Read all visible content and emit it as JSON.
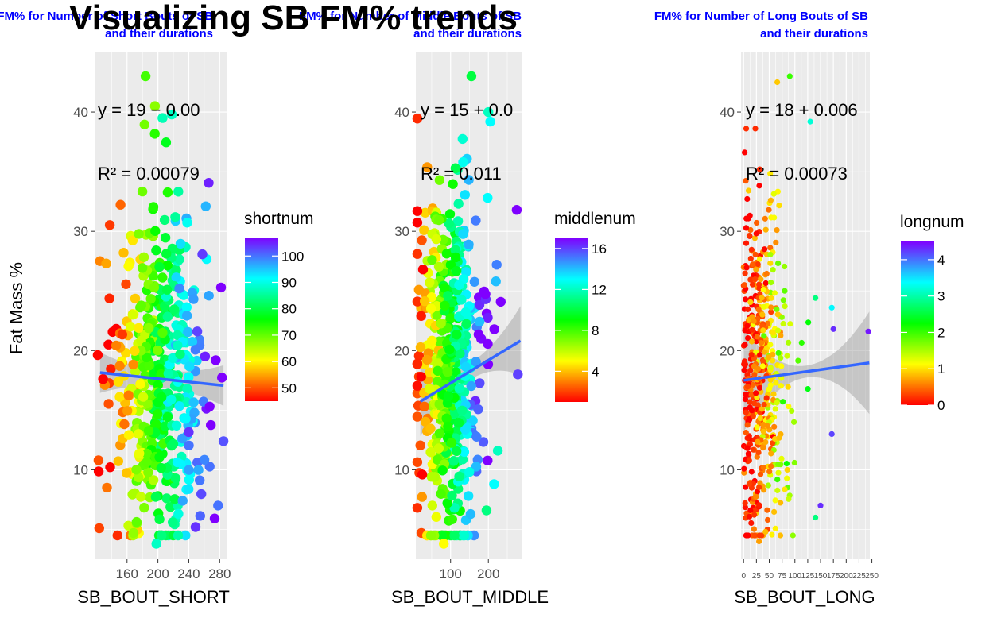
{
  "main_title": "Visualizing SB FM% trends",
  "y_axis_label": "Fat Mass %",
  "colors": {
    "panel_bg": "#ebebeb",
    "grid": "#ffffff",
    "trend_line": "#3366ff",
    "ribbon": "#999999",
    "title_blue": "#0000ff",
    "gradient": [
      "#ff0000",
      "#ffff00",
      "#00ff00",
      "#00ffff",
      "#7f00ff"
    ]
  },
  "chart_data": [
    {
      "type": "scatter",
      "title_lines": [
        "FM% for Number of Short Bouts of SB",
        "and their durations"
      ],
      "xlabel": "SB_BOUT_SHORT",
      "ylabel": "Fat Mass %",
      "xlim": [
        118,
        290
      ],
      "ylim": [
        2.5,
        45
      ],
      "xticks": [
        160,
        200,
        240,
        280
      ],
      "yticks": [
        10,
        20,
        30,
        40
      ],
      "xtick_labels": [
        "160",
        "200",
        "240",
        "280"
      ],
      "ytick_labels": [
        "10",
        "20",
        "30",
        "40"
      ],
      "equation": "y = 19 − 0.00",
      "r2_label": "R² = 0.00079",
      "regression": {
        "intercept": 19.0,
        "slope": -0.0068,
        "ribbon_half_width_center": 0.7,
        "ribbon_half_width_edge": 1.7,
        "x_range": [
          125,
          285
        ]
      },
      "legend": {
        "title": "shortnum",
        "min": 45,
        "max": 107,
        "ticks": [
          50,
          60,
          70,
          80,
          90,
          100
        ]
      },
      "point_summary": {
        "n": 480,
        "x_mean": 200,
        "x_sd": 30,
        "y_mean": 18,
        "y_sd": 7.5,
        "color_min": 45,
        "color_max": 107
      },
      "highlighted_points": [
        {
          "x": 184,
          "y": 43,
          "c": 72
        },
        {
          "x": 218,
          "y": 39.8,
          "c": 88
        },
        {
          "x": 206,
          "y": 39.5,
          "c": 87
        },
        {
          "x": 125,
          "y": 27.5,
          "c": 53
        },
        {
          "x": 133,
          "y": 27.3,
          "c": 55
        },
        {
          "x": 123,
          "y": 10.8,
          "c": 50
        },
        {
          "x": 124,
          "y": 5.1,
          "c": 49
        },
        {
          "x": 134,
          "y": 8.5,
          "c": 52
        },
        {
          "x": 262,
          "y": 32.1,
          "c": 96
        },
        {
          "x": 266,
          "y": 24.6,
          "c": 97
        },
        {
          "x": 251,
          "y": 21.6,
          "c": 103
        },
        {
          "x": 267,
          "y": 15.3,
          "c": 107
        },
        {
          "x": 285,
          "y": 12.4,
          "c": 102
        },
        {
          "x": 278,
          "y": 7.0,
          "c": 100
        },
        {
          "x": 232,
          "y": 7.4,
          "c": 97
        },
        {
          "x": 198,
          "y": 3.8,
          "c": 88
        }
      ]
    },
    {
      "type": "scatter",
      "title_lines": [
        "FM% for Number of Middle Bouts of SB",
        "and their durations"
      ],
      "xlabel": "SB_BOUT_MIDDLE",
      "ylabel": "Fat Mass %",
      "xlim": [
        8,
        290
      ],
      "ylim": [
        2.5,
        45
      ],
      "xticks": [
        100,
        200
      ],
      "yticks": [
        10,
        20,
        30,
        40
      ],
      "xtick_labels": [
        "100",
        "200"
      ],
      "ytick_labels": [
        "10",
        "20",
        "30",
        "40"
      ],
      "equation": "y = 15 + 0.0",
      "r2_label": "R² = 0.011",
      "regression": {
        "intercept": 15.35,
        "slope": 0.0192,
        "ribbon_half_width_center": 0.7,
        "ribbon_half_width_edge": 2.9,
        "x_range": [
          20,
          285
        ]
      },
      "legend": {
        "title": "middlenum",
        "min": 1,
        "max": 17,
        "ticks": [
          4,
          8,
          12,
          16
        ]
      },
      "point_summary": {
        "n": 480,
        "x_mean": 95,
        "x_sd": 42,
        "y_mean": 18,
        "y_sd": 7.5,
        "color_min": 1,
        "color_max": 17
      },
      "highlighted_points": [
        {
          "x": 155,
          "y": 43,
          "c": 10
        },
        {
          "x": 200,
          "y": 40,
          "c": 12
        },
        {
          "x": 205,
          "y": 39.2,
          "c": 13
        },
        {
          "x": 198,
          "y": 32.8,
          "c": 13
        },
        {
          "x": 275,
          "y": 31.8,
          "c": 17
        },
        {
          "x": 222,
          "y": 27.2,
          "c": 15
        },
        {
          "x": 220,
          "y": 25.8,
          "c": 14
        },
        {
          "x": 278,
          "y": 18.0,
          "c": 16
        },
        {
          "x": 27,
          "y": 26.8,
          "c": 1
        },
        {
          "x": 22,
          "y": 17.8,
          "c": 1
        },
        {
          "x": 25,
          "y": 9.6,
          "c": 1
        },
        {
          "x": 82,
          "y": 3.8,
          "c": 5
        },
        {
          "x": 225,
          "y": 11.6,
          "c": 12
        },
        {
          "x": 215,
          "y": 8.8,
          "c": 13
        },
        {
          "x": 195,
          "y": 6.6,
          "c": 11
        }
      ]
    },
    {
      "type": "scatter",
      "title_lines": [
        "FM% for Number of Long Bouts of SB",
        "and their durations"
      ],
      "xlabel": "SB_BOUT_LONG",
      "ylabel": "Fat Mass %",
      "xlim": [
        -5,
        246
      ],
      "ylim": [
        2.5,
        45
      ],
      "xticks": [
        0,
        25,
        50,
        75,
        100,
        125,
        150,
        175,
        200,
        225,
        250
      ],
      "yticks": [
        10,
        20,
        30,
        40
      ],
      "xtick_labels": [
        "0",
        "25",
        "50",
        "75",
        "100",
        "125",
        "150",
        "175",
        "200",
        "225",
        "250"
      ],
      "ytick_labels": [
        "10",
        "20",
        "30",
        "40"
      ],
      "equation": "y = 18 + 0.006",
      "r2_label": "R² = 0.00073",
      "regression": {
        "intercept": 17.5,
        "slope": 0.006,
        "ribbon_half_width_center": 0.5,
        "ribbon_half_width_edge": 4.3,
        "x_range": [
          0,
          245
        ]
      },
      "legend": {
        "title": "longnum",
        "min": 0,
        "max": 4.5,
        "ticks": [
          0,
          1,
          2,
          3,
          4
        ]
      },
      "point_summary": {
        "n": 480,
        "x_mean": 35,
        "x_sd": 28,
        "y_mean": 18,
        "y_sd": 7.5,
        "color_min": 0,
        "color_max": 4.5
      },
      "highlighted_points": [
        {
          "x": 90,
          "y": 43,
          "c": 2
        },
        {
          "x": 130,
          "y": 39.2,
          "c": 3.2
        },
        {
          "x": 172,
          "y": 23.6,
          "c": 3.4
        },
        {
          "x": 175,
          "y": 21.8,
          "c": 4.3
        },
        {
          "x": 243,
          "y": 21.6,
          "c": 4.4
        },
        {
          "x": 140,
          "y": 24.4,
          "c": 2.8
        },
        {
          "x": 172,
          "y": 13.0,
          "c": 4.2
        },
        {
          "x": 150,
          "y": 7.0,
          "c": 4.3
        },
        {
          "x": 140,
          "y": 6.0,
          "c": 2.8
        },
        {
          "x": 30,
          "y": 4.0,
          "c": 0.7
        },
        {
          "x": 5,
          "y": 29.0,
          "c": 0.1
        },
        {
          "x": 2,
          "y": 19.1,
          "c": 0.1
        },
        {
          "x": 3,
          "y": 7.2,
          "c": 0.2
        }
      ]
    }
  ]
}
